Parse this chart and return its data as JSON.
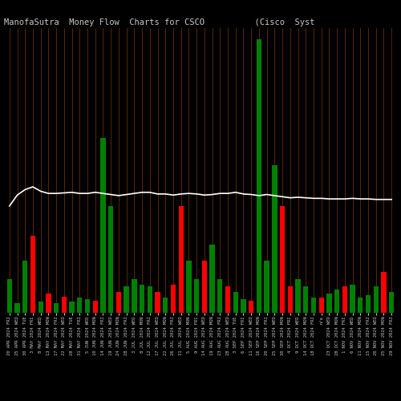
{
  "title": "ManofaSutra  Money Flow  Charts for CSCO          (Cisco  Syst",
  "bg_color": "#000000",
  "bar_colors_pattern": [
    "green",
    "green",
    "green",
    "red",
    "green",
    "red",
    "green",
    "red",
    "green",
    "green",
    "green",
    "red",
    "green",
    "green",
    "red",
    "green",
    "green",
    "green",
    "green",
    "red",
    "green",
    "red",
    "red",
    "green",
    "green",
    "red",
    "green",
    "green",
    "red",
    "green",
    "green",
    "red",
    "green",
    "green",
    "green",
    "red",
    "red",
    "green",
    "green",
    "green",
    "red",
    "green",
    "green",
    "red",
    "green",
    "green",
    "green",
    "green",
    "red",
    "green"
  ],
  "bar_heights": [
    62,
    18,
    95,
    140,
    20,
    35,
    18,
    30,
    20,
    28,
    25,
    22,
    320,
    195,
    38,
    48,
    62,
    52,
    48,
    38,
    28,
    52,
    195,
    95,
    62,
    95,
    125,
    62,
    48,
    38,
    25,
    22,
    500,
    95,
    270,
    195,
    48,
    62,
    48,
    28,
    28,
    35,
    42,
    48,
    52,
    28,
    32,
    48,
    75,
    38
  ],
  "line_values": [
    195,
    215,
    225,
    230,
    222,
    218,
    218,
    219,
    220,
    218,
    218,
    220,
    218,
    216,
    214,
    216,
    218,
    220,
    220,
    217,
    217,
    215,
    217,
    218,
    217,
    215,
    216,
    218,
    218,
    220,
    217,
    216,
    214,
    216,
    214,
    212,
    210,
    211,
    210,
    209,
    209,
    208,
    208,
    208,
    209,
    208,
    208,
    207,
    207,
    207
  ],
  "x_labels": [
    "20 APR 2024 FRI",
    "25 APR 2024 WED",
    "30 APR 2024 TUE",
    "3 MAY 2024 FRI",
    "8 MAY 2024 WED",
    "13 MAY 2024 MON",
    "17 MAY 2024 FRI",
    "22 MAY 2024 WED",
    "28 MAY 2024 TUE",
    "31 MAY 2024 FRI",
    "5 JUN 2024 WED",
    "10 JUN 2024 MON",
    "14 JUN 2024 FRI",
    "19 JUN 2024 WED",
    "24 JUN 2024 MON",
    "28 JUN 2024 FRI",
    "3 JUL 2024 WED",
    "8 JUL 2024 MON",
    "12 JUL 2024 FRI",
    "17 JUL 2024 WED",
    "22 JUL 2024 MON",
    "26 JUL 2024 FRI",
    "31 JUL 2024 WED",
    "5 AUG 2024 MON",
    "9 AUG 2024 FRI",
    "14 AUG 2024 WED",
    "19 AUG 2024 MON",
    "23 AUG 2024 FRI",
    "28 AUG 2024 WED",
    "3 SEP 2024 TUE",
    "6 SEP 2024 FRI",
    "11 SEP 2024 WED",
    "16 SEP 2024 MON",
    "20 SEP 2024 FRI",
    "25 SEP 2024 WED",
    "30 SEP 2024 MON",
    "4 OCT 2024 FRI",
    "9 OCT 2024 WED",
    "14 OCT 2024 MON",
    "18 OCT 2024 FRI",
    "n/a",
    "23 OCT 2024 WED",
    "28 OCT 2024 MON",
    "1 NOV 2024 FRI",
    "6 NOV 2024 WED",
    "11 NOV 2024 MON",
    "15 NOV 2024 FRI",
    "20 NOV 2024 WED",
    "25 NOV 2024 MON",
    "29 NOV 2024 FRI"
  ],
  "grid_color": "#7B3800",
  "line_color": "#FFFFFF",
  "title_color": "#C8C8C8",
  "title_fontsize": 7.5,
  "xlabel_fontsize": 4,
  "ylim": [
    0,
    520
  ],
  "figwidth": 5.0,
  "figheight": 5.0,
  "dpi": 100
}
